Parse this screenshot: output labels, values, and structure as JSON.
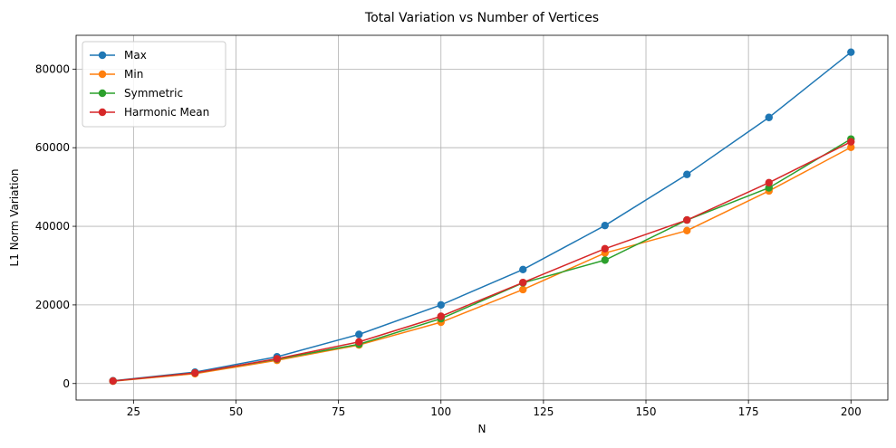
{
  "chart_data": {
    "type": "line",
    "title": "Total Variation vs Number of Vertices",
    "xlabel": "N",
    "ylabel": "L1 Norm Variation",
    "xlim": [
      11,
      209
    ],
    "ylim": [
      -4200,
      88600
    ],
    "xticks": [
      25,
      50,
      75,
      100,
      125,
      150,
      175,
      200
    ],
    "yticks": [
      0,
      20000,
      40000,
      60000,
      80000
    ],
    "grid": true,
    "legend_position": "top-left",
    "x": [
      20,
      40,
      60,
      80,
      100,
      120,
      140,
      160,
      180,
      200
    ],
    "series": [
      {
        "name": "Max",
        "color": "#1f77b4",
        "values": [
          700,
          2900,
          6800,
          12500,
          20000,
          29000,
          40200,
          53200,
          67700,
          84300
        ]
      },
      {
        "name": "Min",
        "color": "#ff7f0e",
        "values": [
          600,
          2500,
          5900,
          9800,
          15600,
          23900,
          33200,
          38900,
          49000,
          60100
        ]
      },
      {
        "name": "Symmetric",
        "color": "#2ca02c",
        "values": [
          650,
          2700,
          6200,
          10000,
          16500,
          25600,
          31400,
          41600,
          49800,
          62200
        ]
      },
      {
        "name": "Harmonic Mean",
        "color": "#d62728",
        "values": [
          650,
          2700,
          6300,
          10600,
          17100,
          25700,
          34300,
          41600,
          51100,
          61500
        ]
      }
    ]
  }
}
